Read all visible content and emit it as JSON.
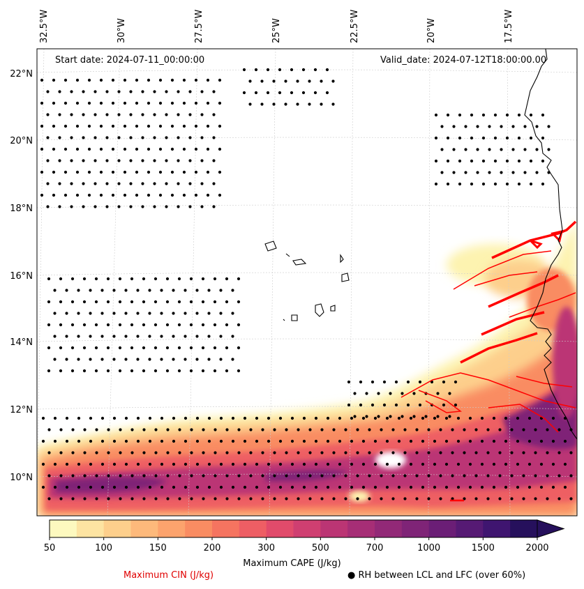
{
  "annotations": {
    "start_date": "Start date: 2024-07-11_00:00:00",
    "valid_date": "Valid_date: 2024-07-12T18:00:00.00"
  },
  "axes": {
    "lon_labels": [
      "32.5°W",
      "30°W",
      "27.5°W",
      "25°W",
      "22.5°W",
      "20°W",
      "17.5°W"
    ],
    "lat_labels": [
      "22°N",
      "20°N",
      "18°N",
      "16°N",
      "14°N",
      "12°N",
      "10°N"
    ]
  },
  "colorbar": {
    "label": "Maximum CAPE (J/kg)",
    "ticks": [
      "50",
      "100",
      "150",
      "200",
      "300",
      "500",
      "700",
      "1000",
      "1500",
      "2000"
    ],
    "colors": [
      "#fdf9bf",
      "#fde4a2",
      "#fdcf8c",
      "#fdb97b",
      "#fca36d",
      "#f98c62",
      "#f57460",
      "#ee5e64",
      "#e14b6b",
      "#cf3f71",
      "#bb3574",
      "#a62e76",
      "#922977",
      "#7f2477",
      "#6b1e76",
      "#561a74",
      "#3f1570",
      "#26105c"
    ]
  },
  "legend": {
    "cin": "Maximum CIN (J/kg)",
    "rh": "● RH between LCL and LFC (over 60%)"
  },
  "colors": {
    "cin_contour": "#ff0000",
    "coast": "#000000"
  }
}
